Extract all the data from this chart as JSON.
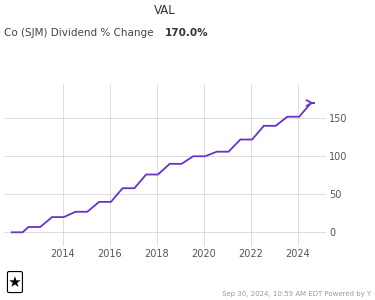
{
  "title_label": "VAL",
  "subtitle": "Co (SJM) Dividend % Change",
  "subtitle_val": "170.0%",
  "line_color": "#6633cc",
  "bg_color": "#ffffff",
  "grid_color": "#d0d0d0",
  "footer_text": "Sep 30, 2024, 10:59 AM EDT Powered by Y",
  "y_ticks": [
    0,
    50,
    100,
    150
  ],
  "y_tick_labels": [
    "0",
    "50",
    "100",
    "150"
  ],
  "data_x": [
    2011.8,
    2012.3,
    2012.55,
    2013.05,
    2013.55,
    2014.05,
    2014.55,
    2015.05,
    2015.55,
    2016.05,
    2016.55,
    2017.05,
    2017.55,
    2018.05,
    2018.55,
    2019.05,
    2019.55,
    2020.05,
    2020.55,
    2021.05,
    2021.55,
    2022.05,
    2022.55,
    2023.05,
    2023.55,
    2024.05,
    2024.55
  ],
  "data_y": [
    0,
    0,
    7,
    7,
    20,
    20,
    27,
    27,
    40,
    40,
    58,
    58,
    76,
    76,
    90,
    90,
    100,
    100,
    106,
    106,
    122,
    122,
    140,
    140,
    152,
    152,
    170
  ],
  "xlim": [
    2011.5,
    2025.2
  ],
  "ylim": [
    -18,
    195
  ]
}
